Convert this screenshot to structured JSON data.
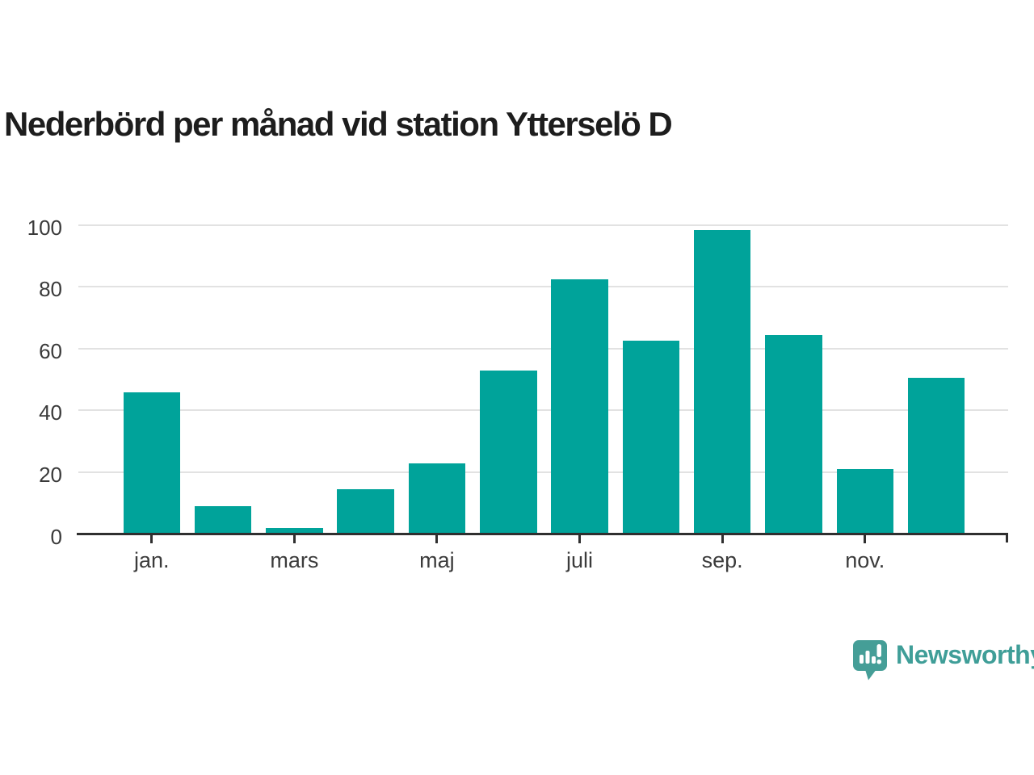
{
  "title": "Nederbörd per månad vid station Ytterselö D",
  "chart_data": {
    "type": "bar",
    "title": "Nederbörd per månad vid station Ytterselö D",
    "values": [
      46,
      9,
      2,
      14.5,
      23,
      53,
      82.5,
      62.5,
      98.5,
      64.5,
      21,
      50.5
    ],
    "x_ticks": [
      {
        "label": "jan.",
        "bar_index": 0
      },
      {
        "label": "mars",
        "bar_index": 2
      },
      {
        "label": "maj",
        "bar_index": 4
      },
      {
        "label": "juli",
        "bar_index": 6
      },
      {
        "label": "sep.",
        "bar_index": 8
      },
      {
        "label": "nov.",
        "bar_index": 10
      }
    ],
    "y_ticks": [
      0,
      20,
      40,
      60,
      80,
      100
    ],
    "ylim": [
      0,
      100
    ],
    "xlabel": "",
    "ylabel": "",
    "grid": true,
    "legend": false,
    "bar_color": "#00a39a",
    "gridline_color": "#e2e2e2",
    "axis_color": "#2f2f2f",
    "text_color": "#3a3a3a"
  },
  "branding": {
    "logo_text": "Newsworthy",
    "logo_color": "#459e97",
    "logo_text_color": "#3f9e98",
    "logo_icon": "bar-chart-speech-bubble"
  }
}
